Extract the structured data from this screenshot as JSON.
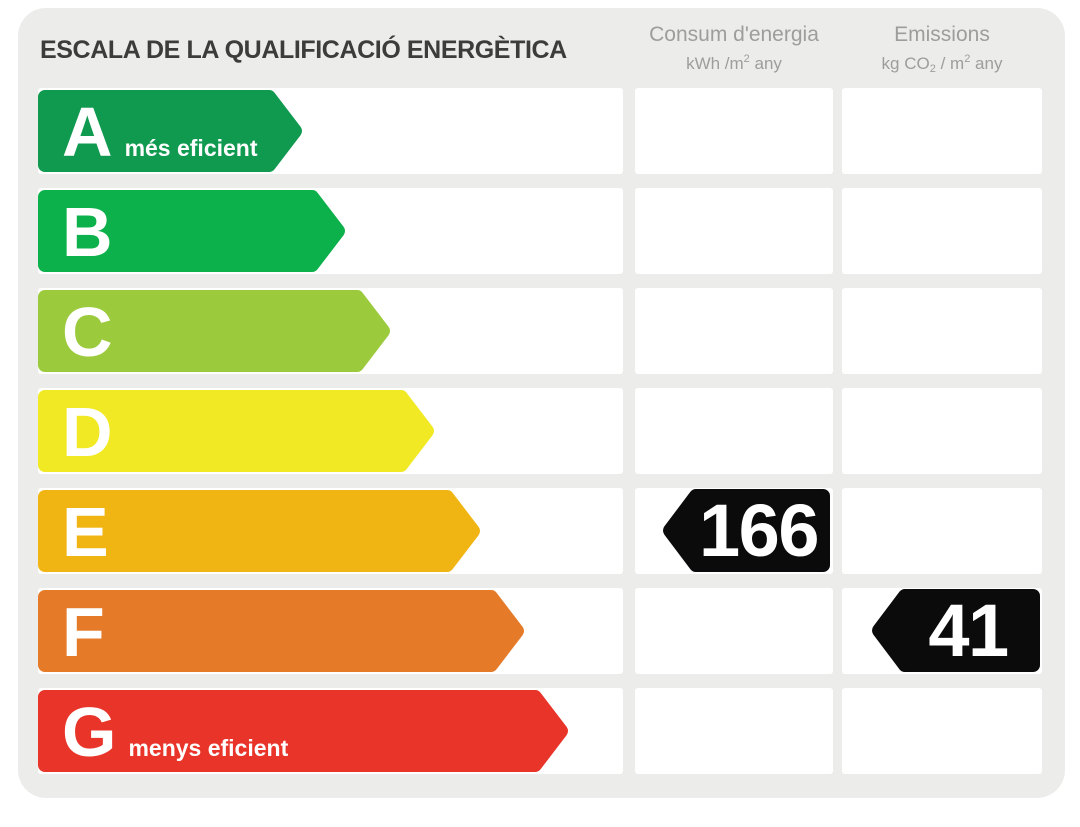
{
  "title": "ESCALA DE LA QUALIFICACIÓ ENERGÈTICA",
  "columns": {
    "consum": {
      "title": "Consum d'energia",
      "unit_parts": [
        {
          "text": "kWh /m"
        },
        {
          "text": "2",
          "pos": "sup"
        },
        {
          "text": "  any"
        }
      ]
    },
    "emissions": {
      "title": "Emissions",
      "unit_parts": [
        {
          "text": "kg CO"
        },
        {
          "text": "2",
          "pos": "sub"
        },
        {
          "text": " / m"
        },
        {
          "text": "2",
          "pos": "sup"
        },
        {
          "text": "  any"
        }
      ]
    }
  },
  "scale": {
    "rows": [
      {
        "grade": "A",
        "label": "més eficient",
        "color": "#109A50",
        "arrow_width": 264
      },
      {
        "grade": "B",
        "label": "",
        "color": "#0DB14B",
        "arrow_width": 307
      },
      {
        "grade": "C",
        "label": "",
        "color": "#9BCA3C",
        "arrow_width": 352
      },
      {
        "grade": "D",
        "label": "",
        "color": "#F0E923",
        "arrow_width": 396
      },
      {
        "grade": "E",
        "label": "",
        "color": "#F1B513",
        "arrow_width": 442
      },
      {
        "grade": "F",
        "label": "",
        "color": "#E57A28",
        "arrow_width": 486
      },
      {
        "grade": "G",
        "label": "menys eficient",
        "color": "#E9342A",
        "arrow_width": 530
      }
    ]
  },
  "values": {
    "consum": {
      "grade": "E",
      "value": "166",
      "arrow_width": 167
    },
    "emissions": {
      "grade": "F",
      "value": "41",
      "arrow_width": 168
    },
    "arrow_color": "#0B0B0B",
    "text_color": "#FFFFFF"
  },
  "theme": {
    "page_bg": "#FFFFFF",
    "panel_bg": "#ECECEB",
    "title_color": "#3C3C3B",
    "header_color": "#9D9D9C",
    "row_bg": "#FFFFFF"
  },
  "chart_data": {
    "type": "bar",
    "title": "ESCALA DE LA QUALIFICACIÓ ENERGÈTICA",
    "categories": [
      "A",
      "B",
      "C",
      "D",
      "E",
      "F",
      "G"
    ],
    "category_colors": [
      "#109A50",
      "#0DB14B",
      "#9BCA3C",
      "#F0E923",
      "#F1B513",
      "#E57A28",
      "#E9342A"
    ],
    "scale_annotations": {
      "A": "més eficient",
      "G": "menys eficient"
    },
    "series": [
      {
        "name": "Consum d'energia (kWh/m2 any)",
        "rated_grade": "E",
        "value": 166
      },
      {
        "name": "Emissions (kg CO2/m2 any)",
        "rated_grade": "F",
        "value": 41
      }
    ],
    "legend_position": "top",
    "grid": false,
    "orientation": "horizontal"
  }
}
